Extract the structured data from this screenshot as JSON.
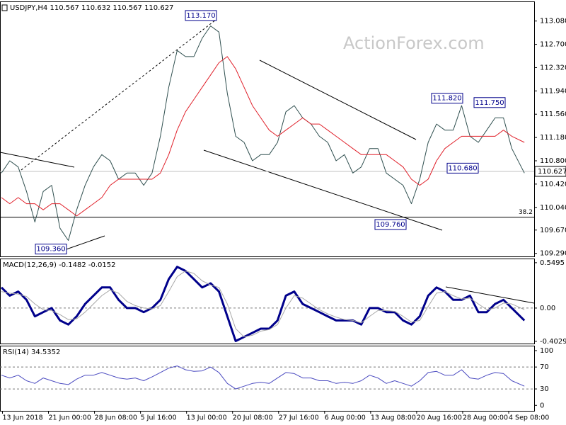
{
  "chart_data": [
    {
      "type": "line",
      "title": "USDJPY,H4  110.567 110.632 110.567 110.627",
      "watermark": "ActionForex.com",
      "x": [
        0,
        8,
        16,
        24,
        32,
        40,
        48,
        56,
        64,
        72,
        80,
        88,
        96,
        104,
        112,
        120,
        128,
        136,
        144,
        152,
        160,
        168,
        176,
        184,
        192,
        200,
        208,
        216,
        224,
        232,
        240,
        248,
        256,
        264,
        272,
        280,
        288,
        296,
        304,
        312,
        320,
        328,
        336,
        344,
        352,
        360,
        368,
        376,
        384,
        392,
        400,
        408,
        416,
        424,
        432,
        440,
        448,
        456,
        464,
        472,
        480,
        488,
        500
      ],
      "xlim": [
        0,
        508
      ],
      "xticks": [
        {
          "value": 1,
          "label": "13 Jun 2018"
        },
        {
          "value": 45,
          "label": "21 Jun 00:00"
        },
        {
          "value": 89,
          "label": "28 Jun 08:00"
        },
        {
          "value": 133,
          "label": "5 Jul 16:00"
        },
        {
          "value": 177,
          "label": "13 Jul 00:00"
        },
        {
          "value": 221,
          "label": "20 Jul 08:00"
        },
        {
          "value": 265,
          "label": "27 Jul 16:00"
        },
        {
          "value": 309,
          "label": "6 Aug 00:00"
        },
        {
          "value": 353,
          "label": "13 Aug 08:00"
        },
        {
          "value": 397,
          "label": "20 Aug 16:00"
        },
        {
          "value": 441,
          "label": "28 Aug 00:00"
        },
        {
          "value": 485,
          "label": "4 Sep 08:00"
        }
      ],
      "series": [
        {
          "color": "#2f4f4f",
          "values": [
            110.6,
            110.8,
            110.7,
            110.3,
            109.8,
            110.3,
            110.4,
            109.7,
            109.5,
            110.0,
            110.4,
            110.7,
            110.9,
            110.8,
            110.5,
            110.6,
            110.6,
            110.4,
            110.6,
            111.2,
            112.0,
            112.6,
            112.5,
            112.5,
            112.8,
            113.0,
            112.9,
            111.9,
            111.2,
            111.1,
            110.8,
            110.9,
            110.9,
            111.1,
            111.6,
            111.7,
            111.5,
            111.4,
            111.2,
            111.1,
            110.8,
            110.9,
            110.6,
            110.7,
            111.0,
            111.0,
            110.6,
            110.5,
            110.4,
            110.1,
            110.5,
            111.1,
            111.4,
            111.3,
            111.3,
            111.7,
            111.2,
            111.1,
            111.3,
            111.5,
            111.5,
            111.0,
            110.6
          ]
        },
        {
          "color": "#e0202a",
          "values": [
            110.2,
            110.1,
            110.2,
            110.1,
            110.1,
            110.0,
            110.1,
            110.1,
            110.0,
            109.9,
            110.0,
            110.1,
            110.2,
            110.4,
            110.5,
            110.5,
            110.5,
            110.5,
            110.5,
            110.6,
            110.9,
            111.3,
            111.6,
            111.8,
            112.0,
            112.2,
            112.4,
            112.5,
            112.3,
            112.0,
            111.7,
            111.5,
            111.3,
            111.2,
            111.3,
            111.4,
            111.5,
            111.4,
            111.4,
            111.3,
            111.2,
            111.1,
            111.0,
            110.9,
            110.9,
            110.9,
            110.9,
            110.8,
            110.7,
            110.5,
            110.4,
            110.5,
            110.8,
            111.0,
            111.1,
            111.2,
            111.2,
            111.2,
            111.2,
            111.2,
            111.3,
            111.2,
            111.1
          ]
        }
      ],
      "ylim": [
        109.24,
        113.4
      ],
      "yticks": [
        {
          "value": 109.29,
          "label": "109.290"
        },
        {
          "value": 109.67,
          "label": "109.670"
        },
        {
          "value": 110.04,
          "label": "110.040"
        },
        {
          "value": 110.42,
          "label": "110.420"
        },
        {
          "value": 110.8,
          "label": "110.800"
        },
        {
          "value": 111.18,
          "label": "111.180"
        },
        {
          "value": 111.56,
          "label": "111.560"
        },
        {
          "value": 111.94,
          "label": "111.940"
        },
        {
          "value": 112.32,
          "label": "112.320"
        },
        {
          "value": 112.7,
          "label": "112.700"
        },
        {
          "value": 113.08,
          "label": "113.080"
        }
      ],
      "grid": false,
      "price_line": {
        "value": 110.627,
        "label": "110.627"
      },
      "fib": {
        "value": 109.88,
        "label": "38.2"
      },
      "annotations": [
        {
          "value": 113.17,
          "label": "113.170"
        },
        {
          "value": 111.82,
          "label": "111.820"
        },
        {
          "value": 111.75,
          "label": "111.750"
        },
        {
          "value": 110.68,
          "label": "110.680"
        },
        {
          "value": 109.36,
          "label": "109.360"
        },
        {
          "value": 109.76,
          "label": "109.760"
        }
      ]
    },
    {
      "type": "line",
      "title": "MACD(12,26,9) -0.1482 -0.0152",
      "series": [
        {
          "color": "#00008b",
          "values": [
            0.25,
            0.15,
            0.2,
            0.1,
            -0.1,
            -0.05,
            0.0,
            -0.15,
            -0.2,
            -0.1,
            0.05,
            0.15,
            0.25,
            0.25,
            0.1,
            0.0,
            0.0,
            -0.05,
            0.0,
            0.1,
            0.35,
            0.5,
            0.45,
            0.35,
            0.25,
            0.3,
            0.2,
            -0.1,
            -0.4,
            -0.35,
            -0.3,
            -0.25,
            -0.25,
            -0.15,
            0.15,
            0.2,
            0.05,
            0.0,
            -0.05,
            -0.1,
            -0.15,
            -0.15,
            -0.15,
            -0.2,
            0.0,
            0.0,
            -0.05,
            -0.05,
            -0.15,
            -0.2,
            -0.1,
            0.15,
            0.25,
            0.2,
            0.1,
            0.1,
            0.15,
            -0.05,
            -0.05,
            0.05,
            0.1,
            0.0,
            -0.15
          ]
        },
        {
          "color": "#a8a8a8",
          "values": [
            0.2,
            0.18,
            0.17,
            0.14,
            0.05,
            -0.02,
            -0.03,
            -0.08,
            -0.14,
            -0.13,
            -0.05,
            0.05,
            0.15,
            0.22,
            0.18,
            0.08,
            0.03,
            0.0,
            -0.01,
            0.03,
            0.2,
            0.38,
            0.45,
            0.42,
            0.33,
            0.28,
            0.25,
            0.05,
            -0.25,
            -0.35,
            -0.33,
            -0.28,
            -0.26,
            -0.2,
            0.0,
            0.15,
            0.12,
            0.05,
            -0.02,
            -0.07,
            -0.11,
            -0.14,
            -0.15,
            -0.18,
            -0.1,
            -0.03,
            -0.03,
            -0.04,
            -0.1,
            -0.17,
            -0.15,
            0.02,
            0.18,
            0.2,
            0.15,
            0.11,
            0.12,
            0.05,
            -0.02,
            0.0,
            0.06,
            0.05,
            -0.02
          ]
        }
      ],
      "ylim": [
        -0.43,
        0.6
      ],
      "yticks": [
        -0.4029,
        {
          "value": 0,
          "label": "0.00"
        },
        0.5495
      ],
      "grid": true
    },
    {
      "type": "line",
      "title": "RSI(14) 34.5352",
      "series": [
        {
          "color": "#4a4ac0",
          "values": [
            55,
            50,
            55,
            45,
            40,
            50,
            45,
            40,
            38,
            48,
            55,
            55,
            60,
            55,
            50,
            48,
            50,
            45,
            52,
            60,
            68,
            72,
            65,
            62,
            63,
            70,
            60,
            40,
            30,
            35,
            40,
            42,
            40,
            50,
            60,
            58,
            50,
            50,
            45,
            45,
            40,
            42,
            40,
            45,
            55,
            50,
            40,
            45,
            40,
            35,
            45,
            60,
            62,
            55,
            55,
            65,
            50,
            48,
            55,
            60,
            58,
            45,
            35
          ]
        }
      ],
      "ylim": [
        -10,
        109
      ],
      "yticks": [
        0,
        30,
        70,
        100
      ],
      "grid": true
    }
  ]
}
